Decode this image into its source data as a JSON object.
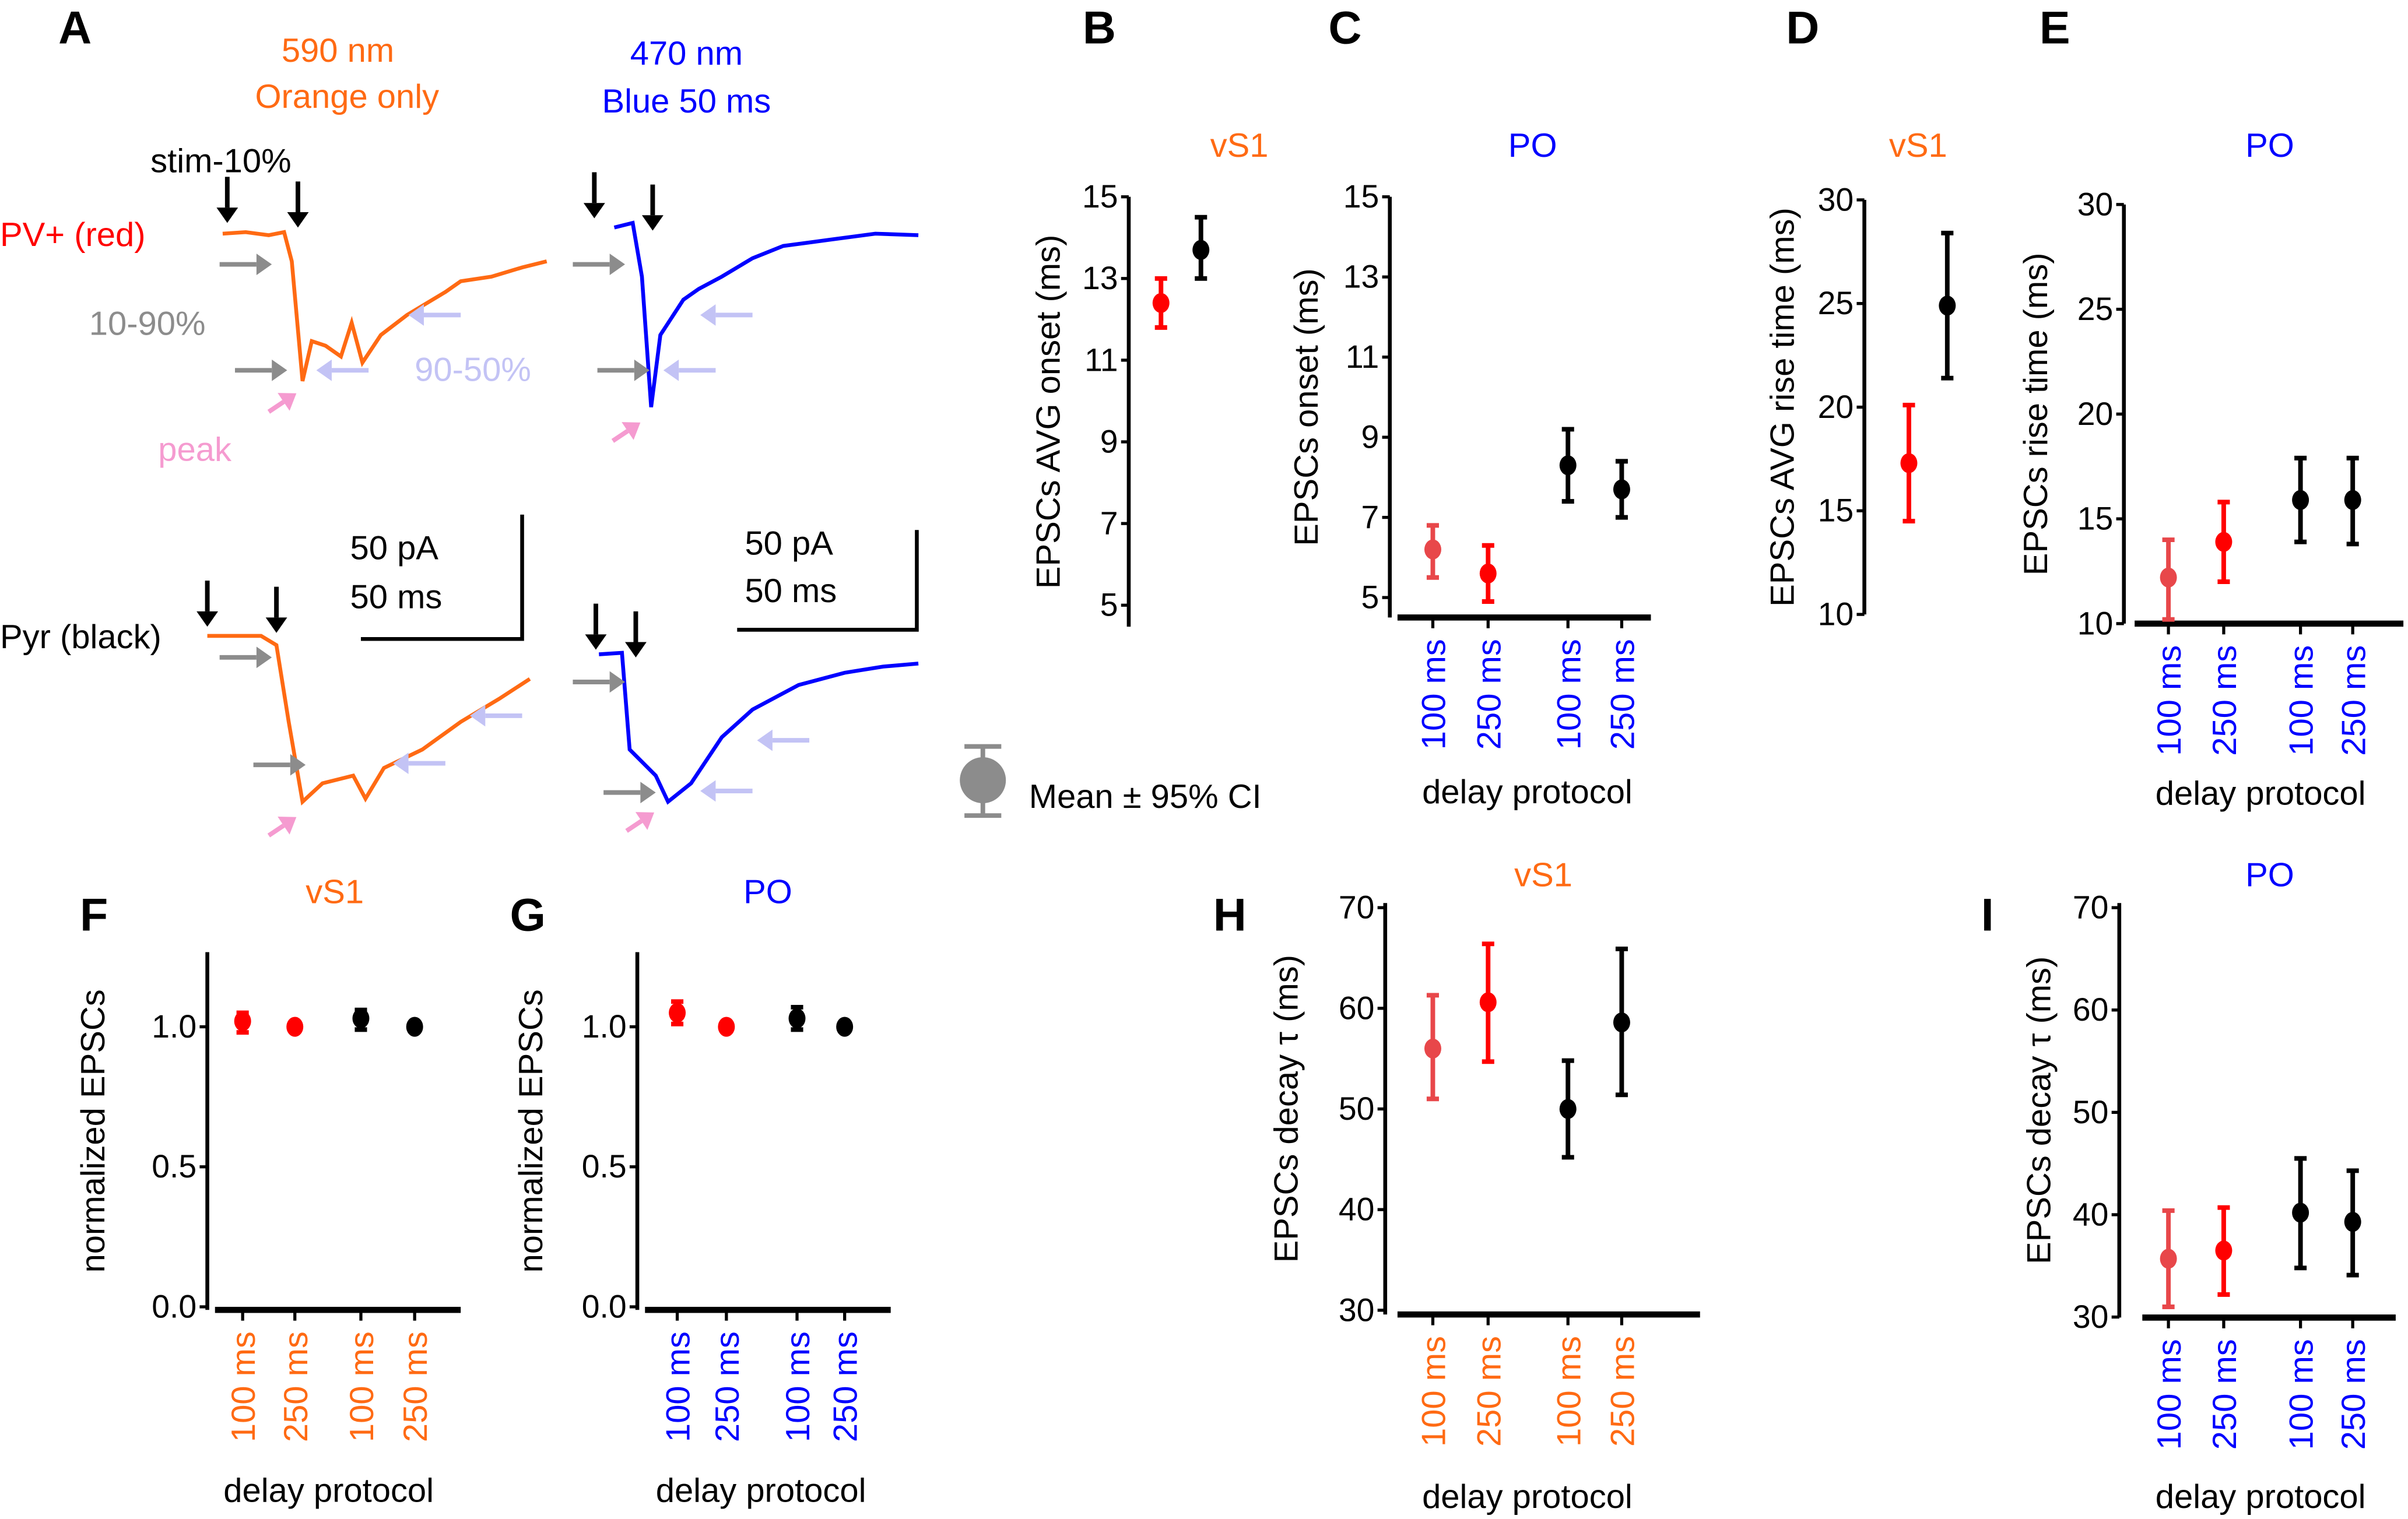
{
  "colors": {
    "orange": "#ff6a13",
    "blue": "#0000ff",
    "red": "#ff0000",
    "light_red": "#e8474a",
    "black": "#000000",
    "gray": "#8c8c8c",
    "lavender": "#c3c3f5",
    "pink": "#f59bd0"
  },
  "panel_a": {
    "letter": "A",
    "orange_title_1": "590 nm",
    "orange_title_2": "Orange only",
    "blue_title_1": "470 nm",
    "blue_title_2": "Blue 50 ms",
    "stim_label": "stim-10%",
    "pv_label": "PV+ (red)",
    "rise_label": "10-90%",
    "decay_label": "90-50%",
    "peak_label": "peak",
    "pyr_label": "Pyr (black)",
    "scale_1_amp": "50 pA",
    "scale_1_time": "50 ms",
    "scale_2_amp": "50 pA",
    "scale_2_time": "50 ms"
  },
  "legend": {
    "label": "Mean ± 95% CI"
  },
  "chart_data": [
    {
      "panel": "B",
      "type": "scatter",
      "title": "vS1",
      "title_color": "orange",
      "ylabel": "EPSCs AVG onset (ms)",
      "ylim": [
        5,
        15
      ],
      "yticks": [
        5,
        7,
        9,
        11,
        13,
        15
      ],
      "xlabel": "",
      "categories": [
        "",
        ""
      ],
      "points": [
        {
          "mean": 12.4,
          "ci": [
            11.8,
            13.0
          ],
          "color": "red"
        },
        {
          "mean": 13.7,
          "ci": [
            13.0,
            14.5
          ],
          "color": "black"
        }
      ]
    },
    {
      "panel": "C",
      "type": "scatter",
      "title": "PO",
      "title_color": "blue",
      "ylabel": "EPSCs onset (ms)",
      "ylim": [
        5,
        15
      ],
      "yticks": [
        5,
        7,
        9,
        11,
        13,
        15
      ],
      "xlabel": "delay protocol",
      "categories": [
        "100 ms",
        "250 ms",
        "100 ms",
        "250 ms"
      ],
      "points": [
        {
          "mean": 6.2,
          "ci": [
            5.5,
            6.8
          ],
          "color": "light_red"
        },
        {
          "mean": 5.6,
          "ci": [
            4.9,
            6.3
          ],
          "color": "red"
        },
        {
          "mean": 8.3,
          "ci": [
            7.4,
            9.2
          ],
          "color": "black"
        },
        {
          "mean": 7.7,
          "ci": [
            7.0,
            8.4
          ],
          "color": "black"
        }
      ]
    },
    {
      "panel": "D",
      "type": "scatter",
      "title": "vS1",
      "title_color": "orange",
      "ylabel": "EPSCs AVG rise time (ms)",
      "ylim": [
        10,
        30
      ],
      "yticks": [
        10,
        15,
        20,
        25,
        30
      ],
      "xlabel": "",
      "categories": [
        "",
        ""
      ],
      "points": [
        {
          "mean": 17.3,
          "ci": [
            14.5,
            20.1
          ],
          "color": "red"
        },
        {
          "mean": 24.9,
          "ci": [
            21.4,
            28.4
          ],
          "color": "black"
        }
      ]
    },
    {
      "panel": "E",
      "type": "scatter",
      "title": "PO",
      "title_color": "blue",
      "ylabel": "EPSCs rise time (ms)",
      "ylim": [
        10,
        30
      ],
      "yticks": [
        10,
        15,
        20,
        25,
        30
      ],
      "xlabel": "delay protocol",
      "categories": [
        "100 ms",
        "250 ms",
        "100 ms",
        "250 ms"
      ],
      "points": [
        {
          "mean": 12.2,
          "ci": [
            10.2,
            14.0
          ],
          "color": "light_red"
        },
        {
          "mean": 13.9,
          "ci": [
            12.0,
            15.8
          ],
          "color": "red"
        },
        {
          "mean": 15.9,
          "ci": [
            13.9,
            17.9
          ],
          "color": "black"
        },
        {
          "mean": 15.9,
          "ci": [
            13.8,
            17.9
          ],
          "color": "black"
        }
      ]
    },
    {
      "panel": "F",
      "type": "scatter",
      "title": "vS1",
      "title_color": "orange",
      "ylabel": "normalized EPSCs",
      "ylim": [
        0,
        1.25
      ],
      "yticks": [
        "0.0",
        "0.5",
        "1.0"
      ],
      "xlabel": "delay protocol",
      "categories": [
        "100 ms",
        "250 ms",
        "100 ms",
        "250 ms"
      ],
      "category_color": "orange",
      "points": [
        {
          "mean": 1.02,
          "ci": [
            0.98,
            1.05
          ],
          "color": "red"
        },
        {
          "mean": 1.0,
          "ci": [
            1.0,
            1.0
          ],
          "color": "red"
        },
        {
          "mean": 1.03,
          "ci": [
            0.99,
            1.06
          ],
          "color": "black"
        },
        {
          "mean": 1.0,
          "ci": [
            1.0,
            1.0
          ],
          "color": "black"
        }
      ]
    },
    {
      "panel": "G",
      "type": "scatter",
      "title": "PO",
      "title_color": "blue",
      "ylabel": "normalized EPSCs",
      "ylim": [
        0,
        1.25
      ],
      "yticks": [
        "0.0",
        "0.5",
        "1.0"
      ],
      "xlabel": "delay protocol",
      "categories": [
        "100 ms",
        "250 ms",
        "100 ms",
        "250 ms"
      ],
      "category_color": "blue",
      "points": [
        {
          "mean": 1.05,
          "ci": [
            1.01,
            1.09
          ],
          "color": "red"
        },
        {
          "mean": 1.0,
          "ci": [
            1.0,
            1.0
          ],
          "color": "red"
        },
        {
          "mean": 1.03,
          "ci": [
            0.99,
            1.07
          ],
          "color": "black"
        },
        {
          "mean": 1.0,
          "ci": [
            1.0,
            1.0
          ],
          "color": "black"
        }
      ]
    },
    {
      "panel": "H",
      "type": "scatter",
      "title": "vS1",
      "title_color": "orange",
      "ylabel": "EPSCs decay τ (ms)",
      "ylim": [
        25,
        70
      ],
      "yticks": [
        30,
        40,
        50,
        60,
        70
      ],
      "xlabel": "delay protocol",
      "categories": [
        "100 ms",
        "250 ms",
        "100 ms",
        "250 ms"
      ],
      "category_color": "orange",
      "points": [
        {
          "mean": 56.0,
          "ci": [
            51.0,
            61.3
          ],
          "color": "light_red"
        },
        {
          "mean": 60.6,
          "ci": [
            54.7,
            66.4
          ],
          "color": "red"
        },
        {
          "mean": 50.0,
          "ci": [
            45.2,
            54.8
          ],
          "color": "black"
        },
        {
          "mean": 58.6,
          "ci": [
            51.4,
            65.9
          ],
          "color": "black"
        }
      ]
    },
    {
      "panel": "I",
      "type": "scatter",
      "title": "PO",
      "title_color": "blue",
      "ylabel": "EPSCs decay τ (ms)",
      "ylim": [
        25,
        70
      ],
      "yticks": [
        30,
        40,
        50,
        60,
        70
      ],
      "xlabel": "delay protocol",
      "categories": [
        "100 ms",
        "250 ms",
        "100 ms",
        "250 ms"
      ],
      "category_color": "blue",
      "points": [
        {
          "mean": 35.7,
          "ci": [
            31.0,
            40.4
          ],
          "color": "light_red"
        },
        {
          "mean": 36.5,
          "ci": [
            32.2,
            40.7
          ],
          "color": "red"
        },
        {
          "mean": 40.2,
          "ci": [
            34.8,
            45.5
          ],
          "color": "black"
        },
        {
          "mean": 39.3,
          "ci": [
            34.1,
            44.3
          ],
          "color": "black"
        }
      ]
    }
  ]
}
